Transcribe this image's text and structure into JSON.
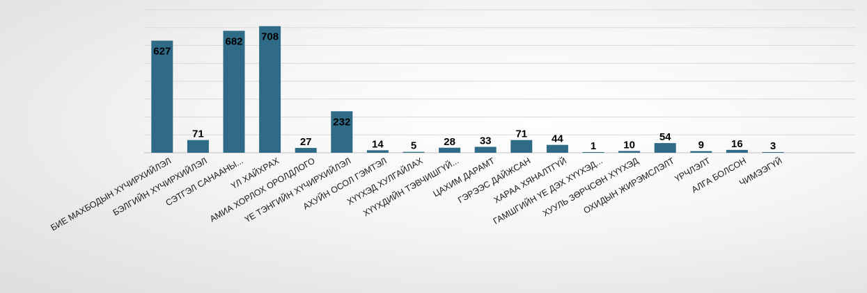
{
  "chart_data": {
    "type": "bar",
    "title": "",
    "xlabel": "",
    "ylabel": "",
    "ylim": [
      0,
      800
    ],
    "grid": true,
    "legend": "none",
    "bar_color": "#2f6b86",
    "categories": [
      "БИЕ МАХБОДЫН ХҮЧИРХИЙЛЭЛ",
      "БЭЛГИЙН ХҮЧИРХИЙЛЭЛ",
      "СЭТГЭЛ САНААНЫ...",
      "ҮЛ ХАЙХРАХ",
      "АМИА ХОРЛОХ ОРОЛДЛОГО",
      "ҮЕ ТЭНГИЙН ХҮЧИРХИЙЛЭЛ",
      "АХУЙН ОСОЛ ГЭМТЭЛ",
      "ХҮҮХЭД ХУЛГАЙЛАХ",
      "ХҮҮХДИЙН ТЭВЧИШГҮЙ...",
      "ЦАХИМ ДАРАМТ",
      "ГЭРЭЭС ДАЙЖСАН",
      "ХАРАА ХЯНАЛТГҮЙ",
      "ГАМШГИЙН ҮЕ ДЭХ ХҮҮХЭД...",
      "ХУУЛЬ ЗӨРЧСӨН ХҮҮХЭД",
      "ОХИДЫН ЖИРЭМСЛЭЛТ",
      "ҮРЧЛЭЛТ",
      "АЛГА БОЛСОН",
      "ЧИМЭЭГҮЙ"
    ],
    "values": [
      627,
      71,
      682,
      708,
      27,
      232,
      14,
      5,
      28,
      33,
      71,
      44,
      1,
      10,
      54,
      9,
      16,
      3
    ]
  }
}
